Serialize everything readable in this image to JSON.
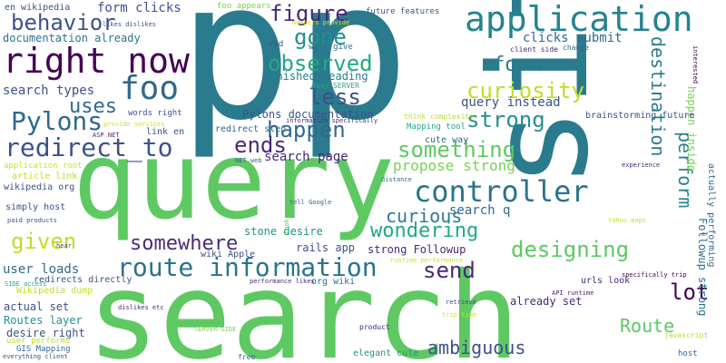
{
  "words": [
    {
      "text": "p",
      "color": "#2a7b8e"
    },
    {
      "text": "p",
      "color": "#2a7b8e"
    },
    {
      "text": "query",
      "color": "#5ec962"
    },
    {
      "text": "search",
      "color": "#5ec962"
    },
    {
      "text": "site",
      "color": "#2a7b8e"
    },
    {
      "text": "application",
      "color": "#25838e"
    },
    {
      "text": "right now",
      "color": "#440154"
    },
    {
      "text": "foo",
      "color": "#31688e"
    },
    {
      "text": "controller",
      "color": "#2c728e"
    },
    {
      "text": "route information",
      "color": "#2c728e"
    },
    {
      "text": "redirect_to",
      "color": "#3b528b"
    },
    {
      "text": "Pylons",
      "color": "#31688e"
    },
    {
      "text": "behavior",
      "color": "#3b528b"
    },
    {
      "text": "figure",
      "color": "#482878"
    },
    {
      "text": "gone",
      "color": "#21918c"
    },
    {
      "text": "observed",
      "color": "#22a884"
    },
    {
      "text": "less",
      "color": "#3b528b"
    },
    {
      "text": "happen",
      "color": "#31688e"
    },
    {
      "text": "ends",
      "color": "#482878"
    },
    {
      "text": "form",
      "color": "#2a7b8e"
    },
    {
      "text": "curiosity",
      "color": "#bddf26"
    },
    {
      "text": "strong",
      "color": "#21918c"
    },
    {
      "text": "something",
      "color": "#5ec962"
    },
    {
      "text": "destination",
      "color": "#2a7b8e"
    },
    {
      "text": "perform",
      "color": "#25838e"
    },
    {
      "text": "given",
      "color": "#bddf26"
    },
    {
      "text": "somewhere",
      "color": "#472d7b"
    },
    {
      "text": "wondering",
      "color": "#22a884"
    },
    {
      "text": "curious",
      "color": "#2a7b8e"
    },
    {
      "text": "send",
      "color": "#482878"
    },
    {
      "text": "designing",
      "color": "#5ec962"
    },
    {
      "text": "lot",
      "color": "#440154"
    },
    {
      "text": "Route",
      "color": "#5ec962"
    },
    {
      "text": "ambiguous",
      "color": "#3b528b"
    },
    {
      "text": "uses",
      "color": "#31688e"
    },
    {
      "text": "search types",
      "color": "#3b528b"
    },
    {
      "text": "search page",
      "color": "#482878"
    },
    {
      "text": "propose strong",
      "color": "#7ad151"
    },
    {
      "text": "search q",
      "color": "#31688e"
    },
    {
      "text": "query instead",
      "color": "#3b528b"
    },
    {
      "text": "user loads",
      "color": "#31688e"
    },
    {
      "text": "form clicks",
      "color": "#3b528b"
    },
    {
      "text": "clicks submit",
      "color": "#31688e"
    },
    {
      "text": "documentation already",
      "color": "#2c728e"
    },
    {
      "text": "en wikipedia",
      "color": "#3b528b"
    },
    {
      "text": "Pylons documentation",
      "color": "#3b528b"
    },
    {
      "text": "finished reading",
      "color": "#2a7b8e"
    },
    {
      "text": "redirect step",
      "color": "#31688e"
    },
    {
      "text": "stone desire",
      "color": "#21918c"
    },
    {
      "text": "rails app",
      "color": "#3b528b"
    },
    {
      "text": "strong Followup",
      "color": "#482878"
    },
    {
      "text": "already set",
      "color": "#482878"
    },
    {
      "text": "Followup strong",
      "color": "#2c728e"
    },
    {
      "text": "actually performing",
      "color": "#31688e"
    },
    {
      "text": "happen inside",
      "color": "#7ad151"
    },
    {
      "text": "redirects directly",
      "color": "#3b528b"
    },
    {
      "text": "actual set",
      "color": "#3b528b"
    },
    {
      "text": "Routes layer",
      "color": "#21918c"
    },
    {
      "text": "desire right",
      "color": "#3b528b"
    },
    {
      "text": "Wikipedia dump",
      "color": "#bddf26"
    },
    {
      "text": "user performs",
      "color": "#b5de2b"
    },
    {
      "text": "GIS Mapping",
      "color": "#31688e"
    },
    {
      "text": "wikipedia org",
      "color": "#3b528b"
    },
    {
      "text": "simply host",
      "color": "#3b528b"
    },
    {
      "text": "article link",
      "color": "#bddf26"
    },
    {
      "text": "application root",
      "color": "#d2e21b"
    },
    {
      "text": "link en",
      "color": "#3b528b"
    },
    {
      "text": "brainstorming future",
      "color": "#3b528b"
    },
    {
      "text": "cute way",
      "color": "#31688e"
    },
    {
      "text": "org wiki",
      "color": "#31688e"
    },
    {
      "text": "wiki Apple",
      "color": "#3b528b"
    },
    {
      "text": "urls look",
      "color": "#482878"
    },
    {
      "text": "elegant cute",
      "color": "#21918c"
    },
    {
      "text": "Mapping tool",
      "color": "#22a884"
    },
    {
      "text": "words right",
      "color": "#3b528b"
    },
    {
      "text": "future features",
      "color": "#3b528b"
    },
    {
      "text": "foo appears",
      "color": "#7ad151"
    },
    {
      "text": "rid",
      "color": "#3b528b"
    },
    {
      "text": "will give",
      "color": "#31688e"
    },
    {
      "text": "client side",
      "color": "#482878"
    },
    {
      "text": "change",
      "color": "#31688e"
    },
    {
      "text": "interested",
      "color": "#440154"
    },
    {
      "text": "easy SERVER",
      "color": "#22a884"
    },
    {
      "text": "information specifically",
      "color": "#472d7b"
    },
    {
      "text": "think complexity",
      "color": "#b5de2b"
    },
    {
      "text": "provide services",
      "color": "#d2e21b"
    },
    {
      "text": "likes dislikes",
      "color": "#3b528b"
    },
    {
      "text": "ASP NET",
      "color": "#472d7b"
    },
    {
      "text": "NET web",
      "color": "#31688e"
    },
    {
      "text": "experience",
      "color": "#482878"
    },
    {
      "text": "distance",
      "color": "#31688e"
    },
    {
      "text": "tell Google",
      "color": "#31688e"
    },
    {
      "text": "Yahoo maps",
      "color": "#bddf26"
    },
    {
      "text": "runtime performance",
      "color": "#d2e21b"
    },
    {
      "text": "specifically trip",
      "color": "#440154"
    },
    {
      "text": "API runtime",
      "color": "#482878"
    },
    {
      "text": "retrieve",
      "color": "#3b528b"
    },
    {
      "text": "trip time",
      "color": "#d2e21b"
    },
    {
      "text": "javascript",
      "color": "#b5de2b"
    },
    {
      "text": "host",
      "color": "#31688e"
    },
    {
      "text": "look",
      "color": "#5ec962"
    },
    {
      "text": "performance likes",
      "color": "#472d7b"
    },
    {
      "text": "paid products",
      "color": "#3b528b"
    },
    {
      "text": "hear",
      "color": "#3b528b"
    },
    {
      "text": "SIDE access",
      "color": "#22a884"
    },
    {
      "text": "dislikes etc",
      "color": "#472d7b"
    },
    {
      "text": "SERVER SIDE",
      "color": "#7ad151"
    },
    {
      "text": "product",
      "color": "#482878"
    },
    {
      "text": "everything client",
      "color": "#3b528b"
    },
    {
      "text": "free",
      "color": "#31688e"
    },
    {
      "text": "members provide",
      "color": "#d2e21b"
    },
    {
      "text": "e",
      "color": "#3b528b"
    }
  ]
}
